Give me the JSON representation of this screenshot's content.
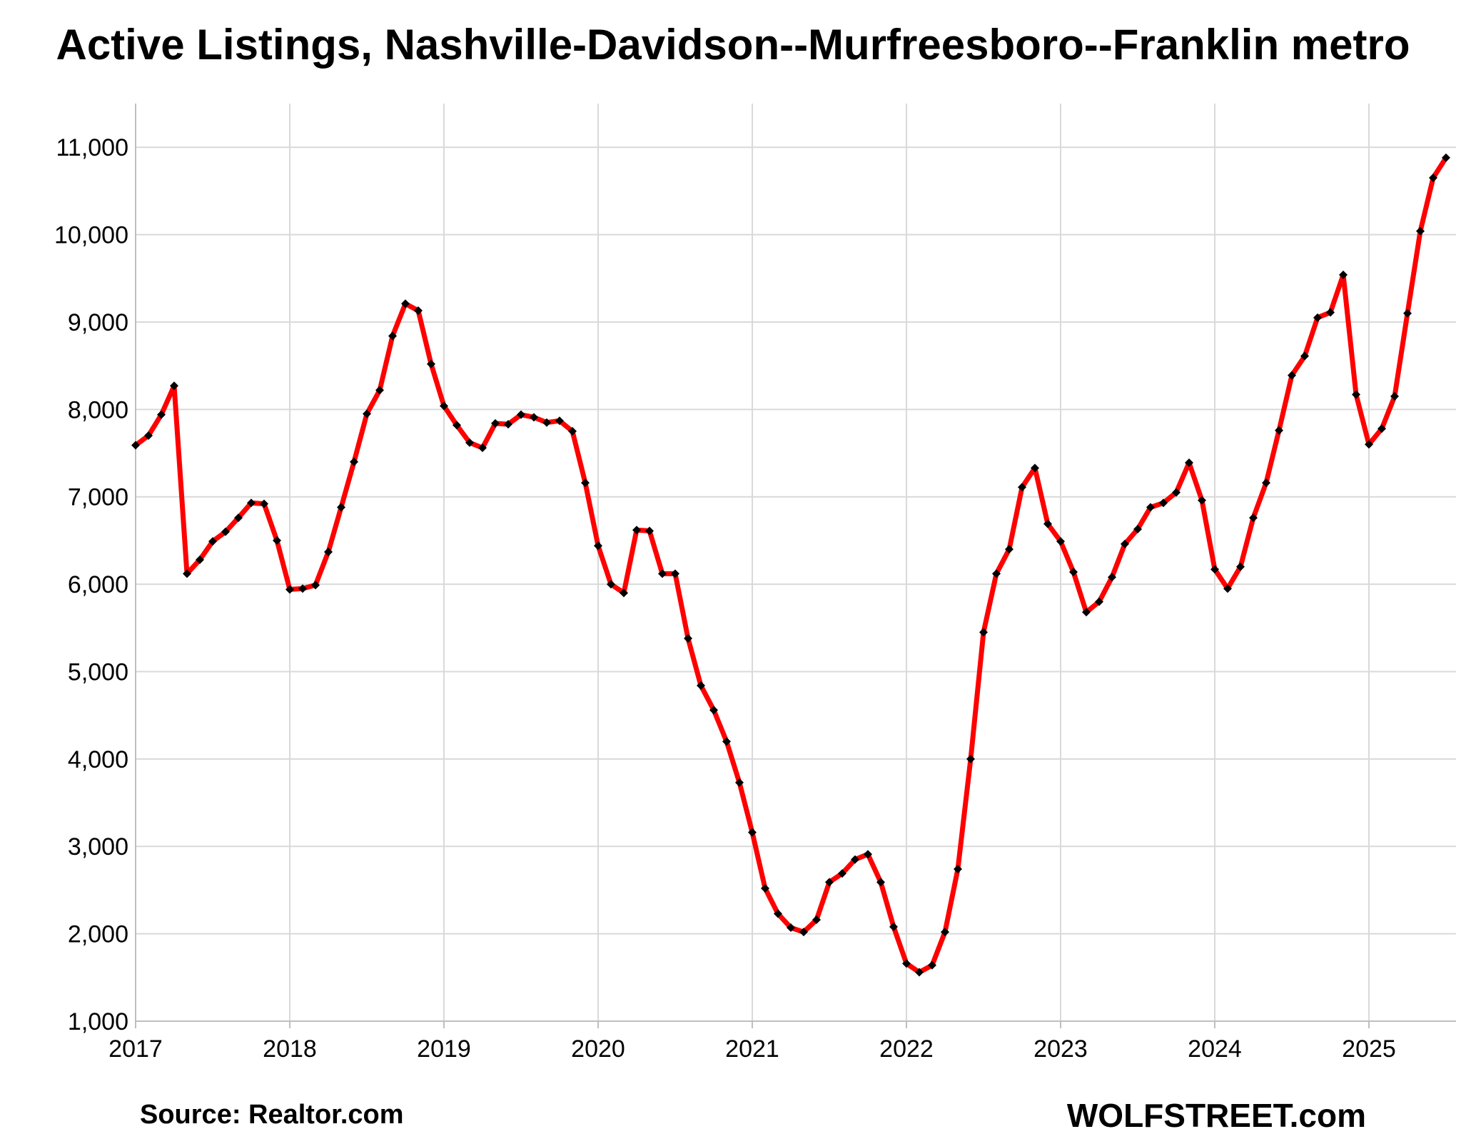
{
  "chart_data": {
    "type": "line",
    "title": "Active Listings, Nashville-Davidson--Murfreesboro--Franklin metro",
    "xlabel": "",
    "ylabel": "",
    "ylim": [
      1000,
      11500
    ],
    "y_ticks": [
      1000,
      2000,
      3000,
      4000,
      5000,
      6000,
      7000,
      8000,
      9000,
      10000,
      11000
    ],
    "y_tick_labels": [
      "1,000",
      "2,000",
      "3,000",
      "4,000",
      "5,000",
      "6,000",
      "7,000",
      "8,000",
      "9,000",
      "10,000",
      "11,000"
    ],
    "x_tick_labels": [
      "2017",
      "2018",
      "2019",
      "2020",
      "2021",
      "2022",
      "2023",
      "2024",
      "2025"
    ],
    "x_start": "2017-01",
    "x_end": "2025-07",
    "grid": true,
    "legend": "none",
    "series": [
      {
        "color": "#ff0000",
        "marker_color": "#000000",
        "values": [
          7590,
          7700,
          7940,
          8270,
          6120,
          6280,
          6490,
          6600,
          6760,
          6930,
          6920,
          6500,
          5940,
          5950,
          5990,
          6370,
          6880,
          7400,
          7950,
          8220,
          8840,
          9210,
          9130,
          8520,
          8040,
          7820,
          7620,
          7560,
          7840,
          7830,
          7940,
          7910,
          7850,
          7870,
          7750,
          7160,
          6440,
          6000,
          5900,
          6620,
          6610,
          6120,
          6120,
          5380,
          4840,
          4560,
          4200,
          3730,
          3160,
          2520,
          2230,
          2070,
          2020,
          2160,
          2590,
          2690,
          2850,
          2910,
          2590,
          2080,
          1660,
          1560,
          1640,
          2020,
          2740,
          4000,
          5450,
          6120,
          6400,
          7110,
          7330,
          6690,
          6490,
          6140,
          5680,
          5800,
          6080,
          6460,
          6630,
          6880,
          6930,
          7050,
          7390,
          6960,
          6170,
          5950,
          6200,
          6760,
          7160,
          7760,
          8390,
          8610,
          9050,
          9110,
          9540,
          8170,
          7600,
          7780,
          8150,
          9100,
          10040,
          10650,
          10880
        ]
      }
    ]
  },
  "footer": {
    "source": "Source: Realtor.com",
    "brand": "WOLFSTREET.com"
  }
}
